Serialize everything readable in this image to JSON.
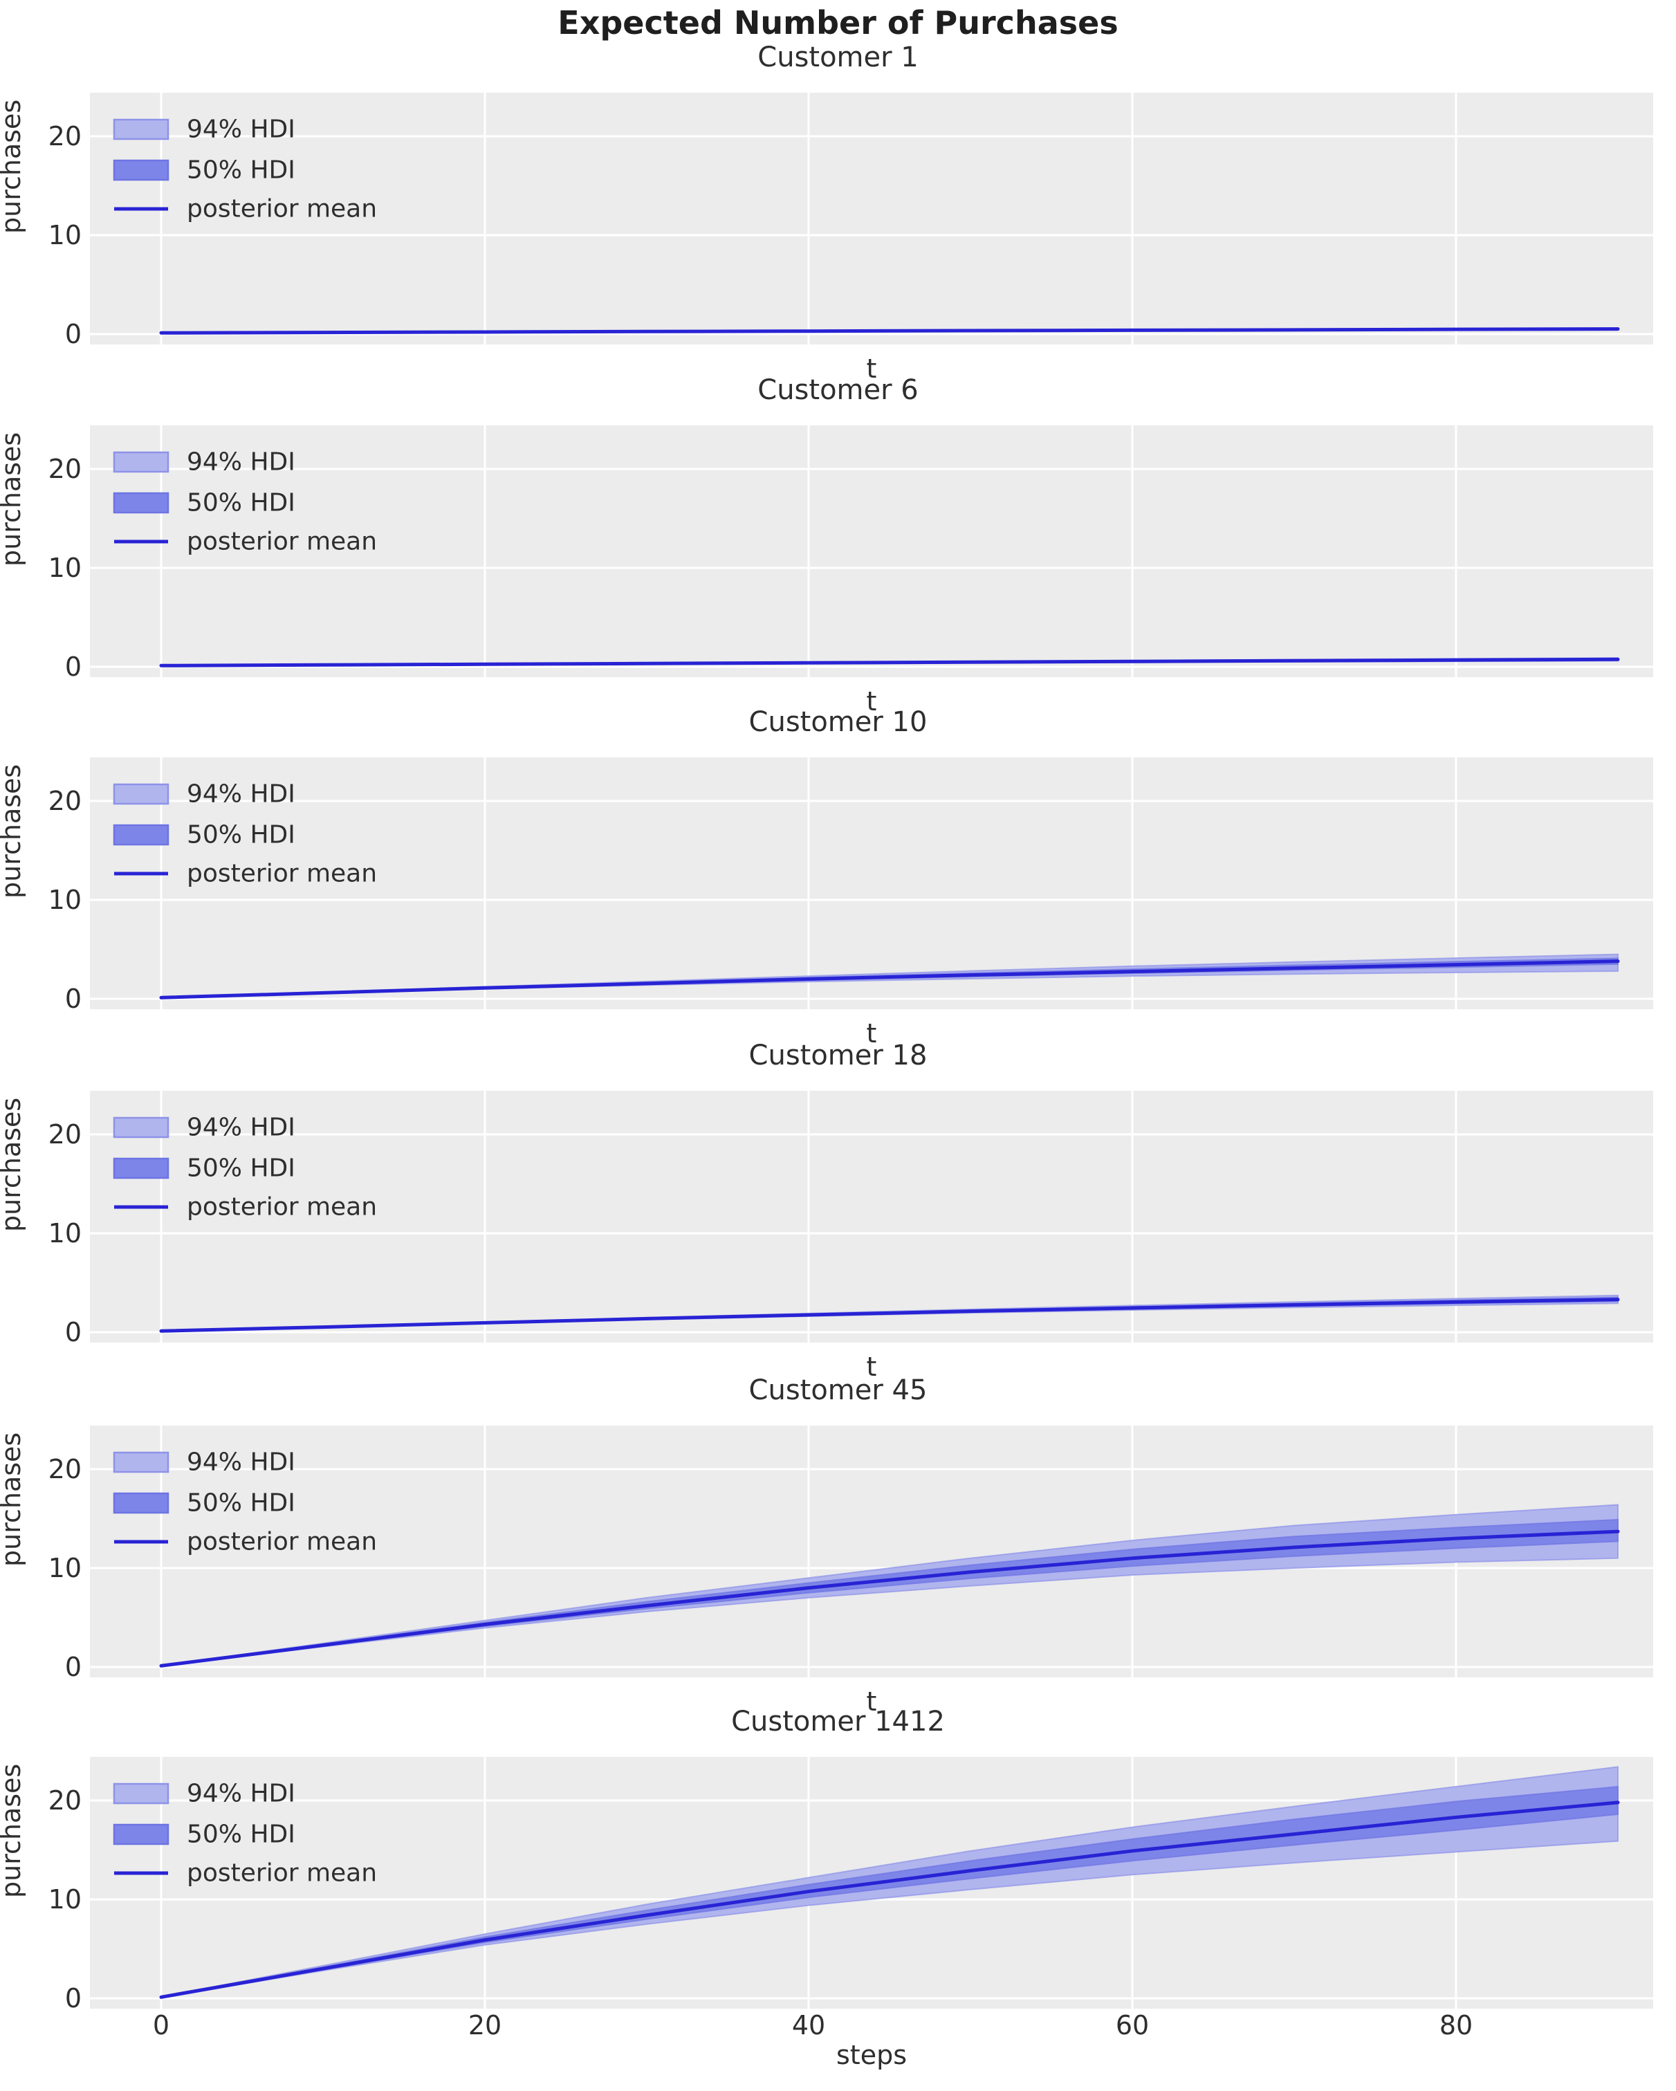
{
  "figure": {
    "title": "Expected Number of Purchases",
    "background": "#ffffff"
  },
  "colors": {
    "axes_background": "#ececec",
    "grid": "#ffffff",
    "hdi_94_fill": "#b1b5ee",
    "hdi_94_edge": "#8d92e8",
    "hdi_50_fill": "#7e85e8",
    "hdi_50_edge": "#6d74e3",
    "mean_line": "#2823d4",
    "title_text": "#1f1f1f",
    "label_text": "#2e2e2e"
  },
  "legend": {
    "items": [
      {
        "label": "94% HDI",
        "kind": "patch94"
      },
      {
        "label": "50% HDI",
        "kind": "patch50"
      },
      {
        "label": "posterior mean",
        "kind": "line"
      }
    ]
  },
  "axis": {
    "ylabel": "purchases",
    "yticks": [
      0,
      10,
      20
    ],
    "xticks": [
      0,
      20,
      40,
      60,
      80
    ],
    "ylim": [
      -1.05,
      24.4
    ],
    "xlim": [
      -4.4,
      92.2
    ],
    "grid": true
  },
  "chart_data": [
    {
      "type": "line",
      "title": "Customer 1",
      "xlabel": "t",
      "ylabel": "purchases",
      "x": [
        0,
        10,
        20,
        30,
        40,
        50,
        60,
        70,
        80,
        90
      ],
      "mean": [
        0.12,
        0.17,
        0.21,
        0.26,
        0.3,
        0.35,
        0.39,
        0.43,
        0.48,
        0.52
      ],
      "hdi94_low": [
        0.1,
        0.14,
        0.18,
        0.22,
        0.25,
        0.29,
        0.32,
        0.36,
        0.39,
        0.42
      ],
      "hdi94_high": [
        0.14,
        0.2,
        0.25,
        0.3,
        0.36,
        0.41,
        0.46,
        0.52,
        0.57,
        0.63
      ],
      "hdi50_low": [
        0.11,
        0.16,
        0.2,
        0.24,
        0.28,
        0.33,
        0.37,
        0.4,
        0.44,
        0.48
      ],
      "hdi50_high": [
        0.13,
        0.18,
        0.23,
        0.28,
        0.32,
        0.37,
        0.42,
        0.46,
        0.51,
        0.56
      ],
      "show_xticklabels": false
    },
    {
      "type": "line",
      "title": "Customer 6",
      "xlabel": "t",
      "ylabel": "purchases",
      "x": [
        0,
        10,
        20,
        30,
        40,
        50,
        60,
        70,
        80,
        90
      ],
      "mean": [
        0.12,
        0.19,
        0.26,
        0.33,
        0.4,
        0.47,
        0.54,
        0.61,
        0.68,
        0.75
      ],
      "hdi94_low": [
        0.1,
        0.16,
        0.22,
        0.28,
        0.33,
        0.39,
        0.44,
        0.5,
        0.55,
        0.6
      ],
      "hdi94_high": [
        0.14,
        0.22,
        0.3,
        0.39,
        0.47,
        0.56,
        0.64,
        0.73,
        0.82,
        0.9
      ],
      "hdi50_low": [
        0.11,
        0.17,
        0.24,
        0.3,
        0.36,
        0.43,
        0.49,
        0.55,
        0.61,
        0.67
      ],
      "hdi50_high": [
        0.13,
        0.2,
        0.28,
        0.36,
        0.43,
        0.51,
        0.58,
        0.66,
        0.74,
        0.82
      ],
      "show_xticklabels": false
    },
    {
      "type": "line",
      "title": "Customer 10",
      "xlabel": "t",
      "ylabel": "purchases",
      "x": [
        0,
        10,
        20,
        30,
        40,
        50,
        60,
        70,
        80,
        90
      ],
      "mean": [
        0.12,
        0.6,
        1.1,
        1.55,
        2.0,
        2.4,
        2.75,
        3.1,
        3.45,
        3.8
      ],
      "hdi94_low": [
        0.1,
        0.55,
        1.0,
        1.38,
        1.73,
        2.03,
        2.3,
        2.5,
        2.66,
        2.8
      ],
      "hdi94_high": [
        0.14,
        0.66,
        1.22,
        1.76,
        2.3,
        2.82,
        3.3,
        3.72,
        4.12,
        4.5
      ],
      "hdi50_low": [
        0.11,
        0.58,
        1.05,
        1.48,
        1.88,
        2.25,
        2.58,
        2.9,
        3.2,
        3.5
      ],
      "hdi50_high": [
        0.13,
        0.63,
        1.16,
        1.66,
        2.14,
        2.6,
        3.0,
        3.4,
        3.76,
        4.1
      ],
      "show_xticklabels": false
    },
    {
      "type": "line",
      "title": "Customer 18",
      "xlabel": "t",
      "ylabel": "purchases",
      "x": [
        0,
        10,
        20,
        30,
        40,
        50,
        60,
        70,
        80,
        90
      ],
      "mean": [
        0.12,
        0.52,
        0.95,
        1.37,
        1.75,
        2.12,
        2.45,
        2.76,
        3.05,
        3.3
      ],
      "hdi94_low": [
        0.1,
        0.49,
        0.89,
        1.28,
        1.62,
        1.95,
        2.24,
        2.5,
        2.72,
        2.92
      ],
      "hdi94_high": [
        0.14,
        0.55,
        1.02,
        1.48,
        1.9,
        2.32,
        2.7,
        3.06,
        3.4,
        3.72
      ],
      "hdi50_low": [
        0.11,
        0.5,
        0.92,
        1.32,
        1.69,
        2.04,
        2.35,
        2.64,
        2.9,
        3.14
      ],
      "hdi50_high": [
        0.13,
        0.54,
        0.99,
        1.43,
        1.83,
        2.22,
        2.57,
        2.92,
        3.24,
        3.52
      ],
      "show_xticklabels": false
    },
    {
      "type": "line",
      "title": "Customer 45",
      "xlabel": "t",
      "ylabel": "purchases",
      "x": [
        0,
        10,
        20,
        30,
        40,
        50,
        60,
        70,
        80,
        90
      ],
      "mean": [
        0.12,
        2.2,
        4.3,
        6.2,
        8.0,
        9.6,
        11.0,
        12.1,
        13.0,
        13.7
      ],
      "hdi94_low": [
        0.1,
        2.05,
        3.95,
        5.6,
        7.0,
        8.2,
        9.3,
        10.0,
        10.6,
        11.0
      ],
      "hdi94_high": [
        0.14,
        2.4,
        4.7,
        7.0,
        9.0,
        11.0,
        12.8,
        14.3,
        15.4,
        16.4
      ],
      "hdi50_low": [
        0.11,
        2.12,
        4.12,
        5.9,
        7.5,
        8.95,
        10.2,
        11.2,
        12.0,
        12.7
      ],
      "hdi50_high": [
        0.13,
        2.3,
        4.5,
        6.6,
        8.5,
        10.3,
        11.9,
        13.2,
        14.1,
        14.9
      ],
      "show_xticklabels": false
    },
    {
      "type": "line",
      "title": "Customer 1412",
      "xlabel": "steps",
      "ylabel": "purchases",
      "x": [
        0,
        10,
        20,
        30,
        40,
        50,
        60,
        70,
        80,
        90
      ],
      "mean": [
        0.12,
        3.0,
        5.9,
        8.4,
        10.8,
        12.9,
        14.9,
        16.6,
        18.3,
        19.8
      ],
      "hdi94_low": [
        0.1,
        2.8,
        5.4,
        7.5,
        9.4,
        11.0,
        12.5,
        13.7,
        14.8,
        15.9
      ],
      "hdi94_high": [
        0.14,
        3.3,
        6.5,
        9.5,
        12.2,
        14.9,
        17.3,
        19.4,
        21.4,
        23.4
      ],
      "hdi50_low": [
        0.11,
        2.9,
        5.65,
        8.0,
        10.2,
        12.1,
        13.9,
        15.5,
        17.0,
        18.6
      ],
      "hdi50_high": [
        0.13,
        3.15,
        6.2,
        8.9,
        11.5,
        13.9,
        16.1,
        18.1,
        19.9,
        21.4
      ],
      "show_xticklabels": true
    }
  ]
}
